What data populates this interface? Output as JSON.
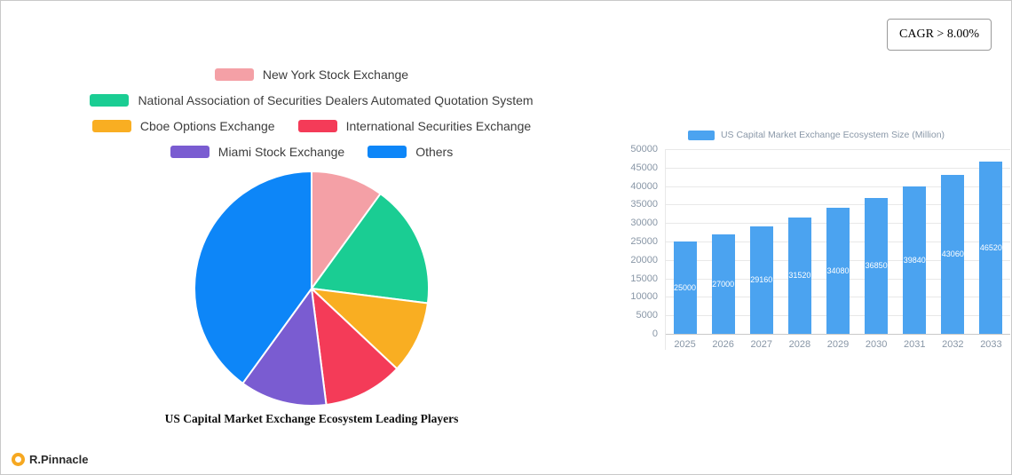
{
  "page": {
    "cagr_badge": "CAGR > 8.00%",
    "brand": "R.Pinnacle"
  },
  "chart_data": [
    {
      "type": "pie",
      "title": "US Capital Market Exchange Ecosystem Leading Players",
      "categories": [
        "New York Stock Exchange",
        "National Association of Securities Dealers Automated Quotation System",
        "Cboe Options Exchange",
        "International Securities Exchange",
        "Miami Stock Exchange",
        "Others"
      ],
      "values": [
        10,
        17,
        10,
        11,
        12,
        40
      ],
      "colors": [
        "#F4A0A6",
        "#1ACD93",
        "#F9AE22",
        "#F43B58",
        "#7A5CD1",
        "#0D86F8"
      ],
      "legend_position": "top",
      "start_angle_deg": -90,
      "direction": "clockwise"
    },
    {
      "type": "bar",
      "legend": "US Capital Market Exchange Ecosystem Size (Million)",
      "categories": [
        "2025",
        "2026",
        "2027",
        "2028",
        "2029",
        "2030",
        "2031",
        "2032",
        "2033"
      ],
      "values": [
        25000,
        27000,
        29160,
        31520,
        34080,
        36850,
        39840,
        43060,
        46520
      ],
      "ylim": [
        0,
        50000
      ],
      "ytick_step": 5000,
      "color": "#4BA3F0",
      "grid": true,
      "legend_position": "top",
      "value_labels": "inside-center"
    }
  ]
}
